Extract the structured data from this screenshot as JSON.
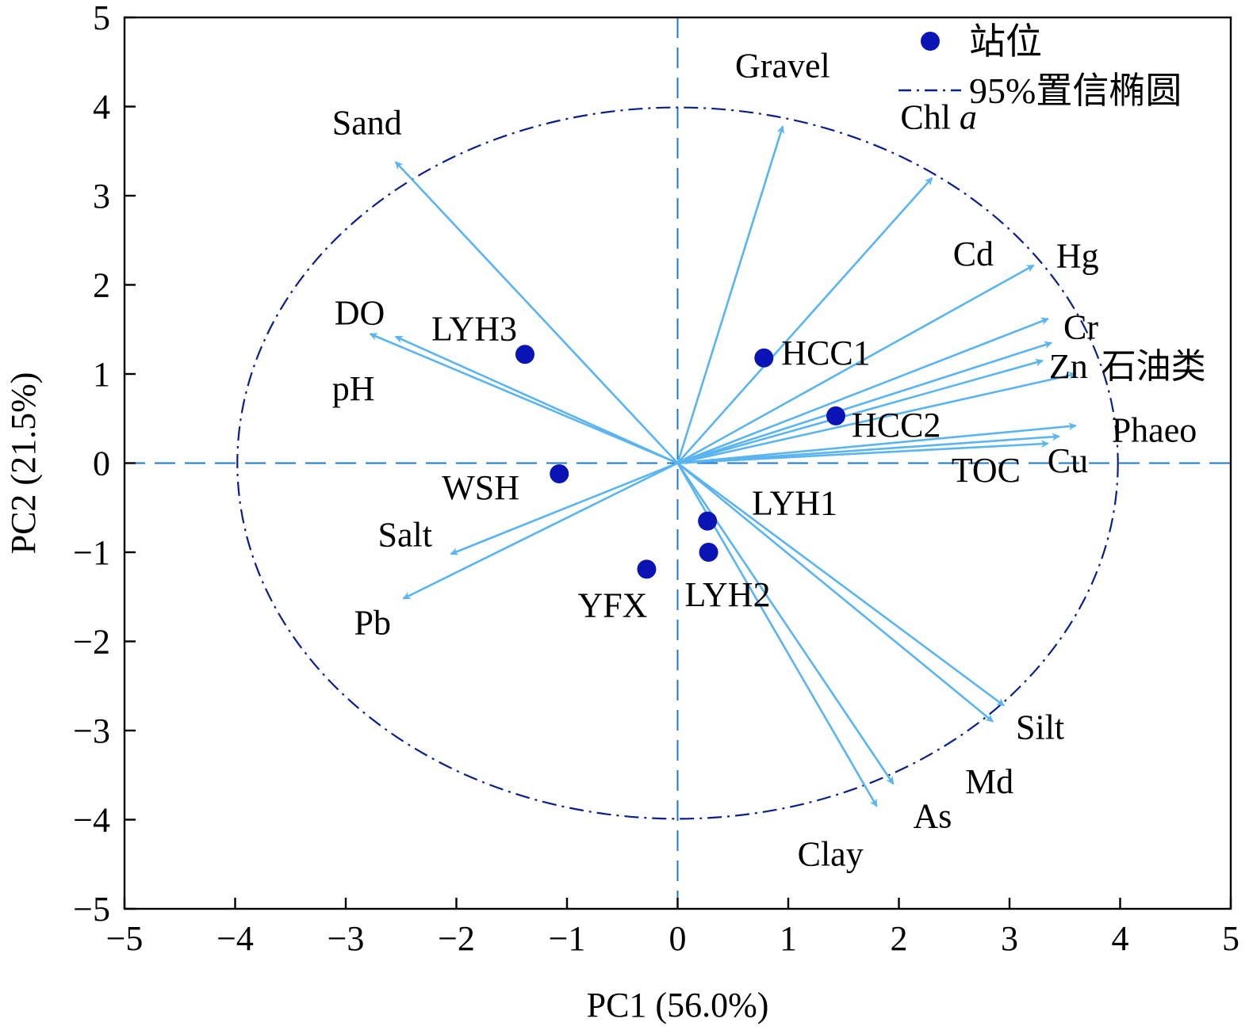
{
  "chart_data": {
    "type": "scatter",
    "xlabel": "PC1 (56.0%)",
    "ylabel": "PC2 (21.5%)",
    "xlim": [
      -5,
      5
    ],
    "ylim": [
      -5,
      5
    ],
    "xticks": [
      -5,
      -4,
      -3,
      -2,
      -1,
      0,
      1,
      2,
      3,
      4,
      5
    ],
    "yticks": [
      -5,
      -4,
      -3,
      -2,
      -1,
      0,
      1,
      2,
      3,
      4,
      5
    ],
    "xtick_labels": [
      "−5",
      "−4",
      "−3",
      "−2",
      "−1",
      "0",
      "1",
      "2",
      "3",
      "4",
      "5"
    ],
    "ytick_labels": [
      "−5",
      "−4",
      "−3",
      "−2",
      "−1",
      "0",
      "1",
      "2",
      "3",
      "4",
      "5"
    ],
    "grid": false,
    "zero_lines": true,
    "legend_position": "top-right",
    "legend": [
      {
        "label": "站位",
        "kind": "marker"
      },
      {
        "label": "95%置信椭圆",
        "kind": "dash-dot-line"
      }
    ],
    "colors": {
      "sites": "#0a14b4",
      "vectors": "#5ab4f0",
      "ellipse": "#0a1e8c",
      "zero_lines": "#1e78c8"
    },
    "ellipse": {
      "center": [
        0,
        0
      ],
      "rx": 3.98,
      "ry": 3.99
    },
    "sites": [
      {
        "name": "LYH3",
        "x": -1.38,
        "y": 1.22
      },
      {
        "name": "HCC1",
        "x": 0.78,
        "y": 1.18
      },
      {
        "name": "HCC2",
        "x": 1.43,
        "y": 0.53
      },
      {
        "name": "WSH",
        "x": -1.07,
        "y": -0.12
      },
      {
        "name": "LYH1",
        "x": 0.27,
        "y": -0.65
      },
      {
        "name": "LYH2",
        "x": 0.28,
        "y": -1.0
      },
      {
        "name": "YFX",
        "x": -0.28,
        "y": -1.19
      }
    ],
    "vectors": [
      {
        "name": "Gravel",
        "x": 0.95,
        "y": 3.78
      },
      {
        "name": "Chl",
        "name_suffix": "a",
        "x": 2.3,
        "y": 3.2
      },
      {
        "name": "Sand",
        "x": -2.55,
        "y": 3.38
      },
      {
        "name": "DO",
        "x": -2.78,
        "y": 1.45
      },
      {
        "name": "pH",
        "x": -2.55,
        "y": 1.42
      },
      {
        "name": "Cd",
        "x": 3.22,
        "y": 2.22
      },
      {
        "name": "Hg",
        "x": 3.35,
        "y": 1.62
      },
      {
        "name": "Cr",
        "x": 3.38,
        "y": 1.35
      },
      {
        "name": "Zn",
        "x": 3.3,
        "y": 1.15
      },
      {
        "name": "石油类",
        "x": 3.6,
        "y": 1.0
      },
      {
        "name": "Phaeo",
        "x": 3.6,
        "y": 0.42
      },
      {
        "name": "Cu",
        "x": 3.45,
        "y": 0.3
      },
      {
        "name": "TOC",
        "x": 3.35,
        "y": 0.22
      },
      {
        "name": "Salt",
        "x": -2.05,
        "y": -1.02
      },
      {
        "name": "Pb",
        "x": -2.48,
        "y": -1.52
      },
      {
        "name": "Silt",
        "x": 2.95,
        "y": -2.72
      },
      {
        "name": "Md",
        "x": 2.85,
        "y": -2.9
      },
      {
        "name": "As",
        "x": 1.95,
        "y": -3.6
      },
      {
        "name": "Clay",
        "x": 1.8,
        "y": -3.85
      }
    ]
  }
}
